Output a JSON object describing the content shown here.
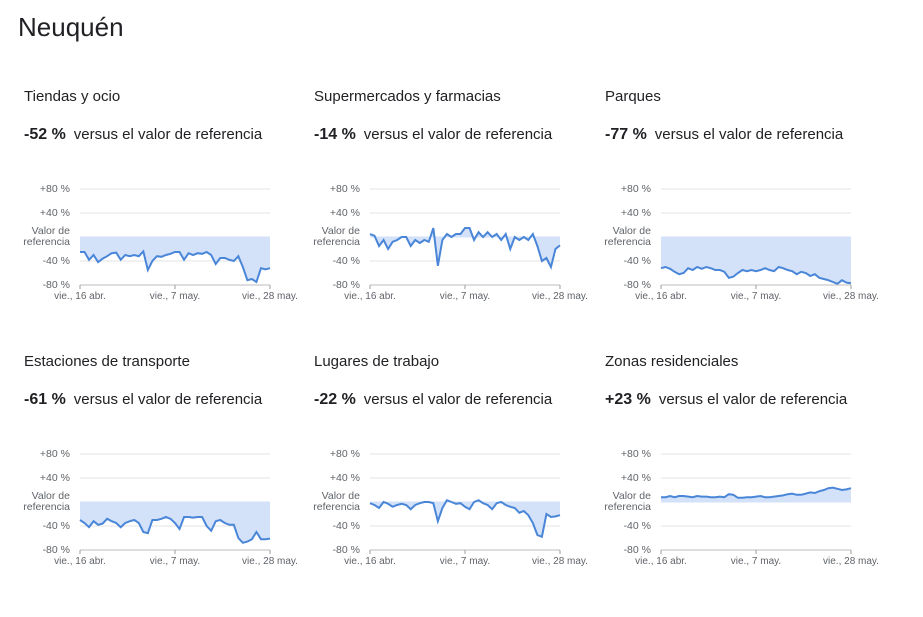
{
  "title": "Neuquén",
  "chart_data": [
    {
      "type": "line",
      "title": "Tiendas y ocio",
      "change": "-52 %",
      "note": "versus el valor de referencia",
      "categories": [
        "vie., 16 abr.",
        null,
        null,
        null,
        null,
        null,
        null,
        null,
        null,
        null,
        null,
        null,
        null,
        null,
        null,
        null,
        null,
        null,
        null,
        null,
        null,
        "vie., 7 may.",
        null,
        null,
        null,
        null,
        null,
        null,
        null,
        null,
        null,
        null,
        null,
        null,
        null,
        null,
        null,
        null,
        null,
        null,
        null,
        null,
        "vie., 28 may."
      ],
      "values": [
        -25,
        -25,
        -38,
        -30,
        -42,
        -36,
        -32,
        -27,
        -26,
        -38,
        -30,
        -32,
        -30,
        -32,
        -24,
        -55,
        -40,
        -32,
        -33,
        -30,
        -28,
        -25,
        -25,
        -38,
        -27,
        -30,
        -27,
        -28,
        -25,
        -30,
        -45,
        -35,
        -35,
        -38,
        -40,
        -32,
        -50,
        -72,
        -70,
        -75,
        -52,
        -54,
        -52
      ],
      "color": "#4a86d8",
      "area_color": "#d3e2f9",
      "ylim": [
        -80,
        80
      ],
      "yticks": [
        {
          "value": 80,
          "label": "+80 %"
        },
        {
          "value": 40,
          "label": "+40 %"
        },
        {
          "value": 0,
          "label": "Valor de referencia"
        },
        {
          "value": -40,
          "label": "-40 %"
        },
        {
          "value": -80,
          "label": "-80 %"
        }
      ]
    },
    {
      "type": "line",
      "title": "Supermercados y farmacias",
      "change": "-14 %",
      "note": "versus el valor de referencia",
      "categories": [
        "vie., 16 abr.",
        null,
        null,
        null,
        null,
        null,
        null,
        null,
        null,
        null,
        null,
        null,
        null,
        null,
        null,
        null,
        null,
        null,
        null,
        null,
        null,
        "vie., 7 may.",
        null,
        null,
        null,
        null,
        null,
        null,
        null,
        null,
        null,
        null,
        null,
        null,
        null,
        null,
        null,
        null,
        null,
        null,
        null,
        null,
        "vie., 28 may."
      ],
      "values": [
        5,
        2,
        -15,
        -5,
        -20,
        -8,
        -5,
        0,
        0,
        -15,
        -5,
        -10,
        -5,
        -8,
        15,
        -48,
        -5,
        5,
        0,
        5,
        5,
        15,
        15,
        -5,
        8,
        0,
        8,
        0,
        5,
        -5,
        5,
        -20,
        0,
        -5,
        0,
        -5,
        5,
        -15,
        -40,
        -35,
        -50,
        -20,
        -14
      ],
      "color": "#4a86d8",
      "area_color": "#d3e2f9",
      "ylim": [
        -80,
        80
      ],
      "yticks": [
        {
          "value": 80,
          "label": "+80 %"
        },
        {
          "value": 40,
          "label": "+40 %"
        },
        {
          "value": 0,
          "label": "Valor de referencia"
        },
        {
          "value": -40,
          "label": "-40 %"
        },
        {
          "value": -80,
          "label": "-80 %"
        }
      ]
    },
    {
      "type": "line",
      "title": "Parques",
      "change": "-77 %",
      "note": "versus el valor de referencia",
      "categories": [
        "vie., 16 abr.",
        null,
        null,
        null,
        null,
        null,
        null,
        null,
        null,
        null,
        null,
        null,
        null,
        null,
        null,
        null,
        null,
        null,
        null,
        null,
        null,
        "vie., 7 may.",
        null,
        null,
        null,
        null,
        null,
        null,
        null,
        null,
        null,
        null,
        null,
        null,
        null,
        null,
        null,
        null,
        null,
        null,
        null,
        null,
        "vie., 28 may."
      ],
      "values": [
        -52,
        -50,
        -53,
        -58,
        -62,
        -60,
        -52,
        -55,
        -50,
        -53,
        -50,
        -52,
        -55,
        -55,
        -58,
        -68,
        -66,
        -60,
        -55,
        -57,
        -55,
        -57,
        -55,
        -52,
        -55,
        -57,
        -50,
        -52,
        -55,
        -57,
        -62,
        -58,
        -60,
        -65,
        -62,
        -68,
        -70,
        -72,
        -75,
        -78,
        -72,
        -76,
        -77
      ],
      "color": "#4a86d8",
      "area_color": "#d3e2f9",
      "ylim": [
        -80,
        80
      ],
      "yticks": [
        {
          "value": 80,
          "label": "+80 %"
        },
        {
          "value": 40,
          "label": "+40 %"
        },
        {
          "value": 0,
          "label": "Valor de referencia"
        },
        {
          "value": -40,
          "label": "-40 %"
        },
        {
          "value": -80,
          "label": "-80 %"
        }
      ]
    },
    {
      "type": "line",
      "title": "Estaciones de transporte",
      "change": "-61 %",
      "note": "versus el valor de referencia",
      "categories": [
        "vie., 16 abr.",
        null,
        null,
        null,
        null,
        null,
        null,
        null,
        null,
        null,
        null,
        null,
        null,
        null,
        null,
        null,
        null,
        null,
        null,
        null,
        null,
        "vie., 7 may.",
        null,
        null,
        null,
        null,
        null,
        null,
        null,
        null,
        null,
        null,
        null,
        null,
        null,
        null,
        null,
        null,
        null,
        null,
        null,
        null,
        "vie., 28 may."
      ],
      "values": [
        -30,
        -35,
        -42,
        -32,
        -38,
        -36,
        -28,
        -32,
        -35,
        -42,
        -35,
        -32,
        -30,
        -35,
        -50,
        -52,
        -30,
        -30,
        -28,
        -25,
        -28,
        -35,
        -45,
        -25,
        -25,
        -26,
        -25,
        -25,
        -40,
        -48,
        -32,
        -30,
        -35,
        -38,
        -38,
        -60,
        -68,
        -66,
        -62,
        -50,
        -62,
        -62,
        -61
      ],
      "color": "#4a86d8",
      "area_color": "#d3e2f9",
      "ylim": [
        -80,
        80
      ],
      "yticks": [
        {
          "value": 80,
          "label": "+80 %"
        },
        {
          "value": 40,
          "label": "+40 %"
        },
        {
          "value": 0,
          "label": "Valor de referencia"
        },
        {
          "value": -40,
          "label": "-40 %"
        },
        {
          "value": -80,
          "label": "-80 %"
        }
      ]
    },
    {
      "type": "line",
      "title": "Lugares de trabajo",
      "change": "-22 %",
      "note": "versus el valor de referencia",
      "categories": [
        "vie., 16 abr.",
        null,
        null,
        null,
        null,
        null,
        null,
        null,
        null,
        null,
        null,
        null,
        null,
        null,
        null,
        null,
        null,
        null,
        null,
        null,
        null,
        "vie., 7 may.",
        null,
        null,
        null,
        null,
        null,
        null,
        null,
        null,
        null,
        null,
        null,
        null,
        null,
        null,
        null,
        null,
        null,
        null,
        null,
        null,
        "vie., 28 may."
      ],
      "values": [
        -2,
        -5,
        -10,
        0,
        -3,
        -8,
        -5,
        -3,
        -5,
        -12,
        -5,
        -2,
        0,
        0,
        -2,
        -32,
        -10,
        3,
        0,
        -3,
        -2,
        -8,
        -12,
        0,
        3,
        -2,
        -5,
        -12,
        -2,
        0,
        -5,
        -8,
        -10,
        -18,
        -15,
        -22,
        -35,
        -55,
        -58,
        -20,
        -25,
        -24,
        -22
      ],
      "color": "#4a86d8",
      "area_color": "#d3e2f9",
      "ylim": [
        -80,
        80
      ],
      "yticks": [
        {
          "value": 80,
          "label": "+80 %"
        },
        {
          "value": 40,
          "label": "+40 %"
        },
        {
          "value": 0,
          "label": "Valor de referencia"
        },
        {
          "value": -40,
          "label": "-40 %"
        },
        {
          "value": -80,
          "label": "-80 %"
        }
      ]
    },
    {
      "type": "line",
      "title": "Zonas residenciales",
      "change": "+23 %",
      "note": "versus el valor de referencia",
      "categories": [
        "vie., 16 abr.",
        null,
        null,
        null,
        null,
        null,
        null,
        null,
        null,
        null,
        null,
        null,
        null,
        null,
        null,
        null,
        null,
        null,
        null,
        null,
        null,
        "vie., 7 may.",
        null,
        null,
        null,
        null,
        null,
        null,
        null,
        null,
        null,
        null,
        null,
        null,
        null,
        null,
        null,
        null,
        null,
        null,
        null,
        null,
        "vie., 28 may."
      ],
      "values": [
        8,
        8,
        10,
        8,
        10,
        10,
        9,
        8,
        10,
        9,
        9,
        8,
        8,
        9,
        8,
        13,
        12,
        7,
        7,
        8,
        8,
        9,
        10,
        8,
        8,
        9,
        10,
        11,
        13,
        14,
        12,
        12,
        14,
        16,
        15,
        18,
        20,
        23,
        24,
        22,
        20,
        21,
        23
      ],
      "color": "#4a86d8",
      "area_color": "#d3e2f9",
      "ylim": [
        -80,
        80
      ],
      "yticks": [
        {
          "value": 80,
          "label": "+80 %"
        },
        {
          "value": 40,
          "label": "+40 %"
        },
        {
          "value": 0,
          "label": "Valor de referencia"
        },
        {
          "value": -40,
          "label": "-40 %"
        },
        {
          "value": -80,
          "label": "-80 %"
        }
      ]
    }
  ]
}
